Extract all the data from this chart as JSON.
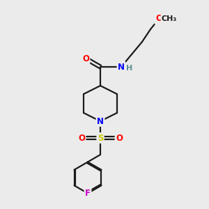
{
  "bg_color": "#ebebeb",
  "bond_color": "#1a1a1a",
  "atom_colors": {
    "O": "#ff0000",
    "N": "#0000ff",
    "S": "#cccc00",
    "F": "#cc00cc",
    "H": "#5a9090",
    "C": "#1a1a1a"
  },
  "font_size": 8.5,
  "line_width": 1.6
}
